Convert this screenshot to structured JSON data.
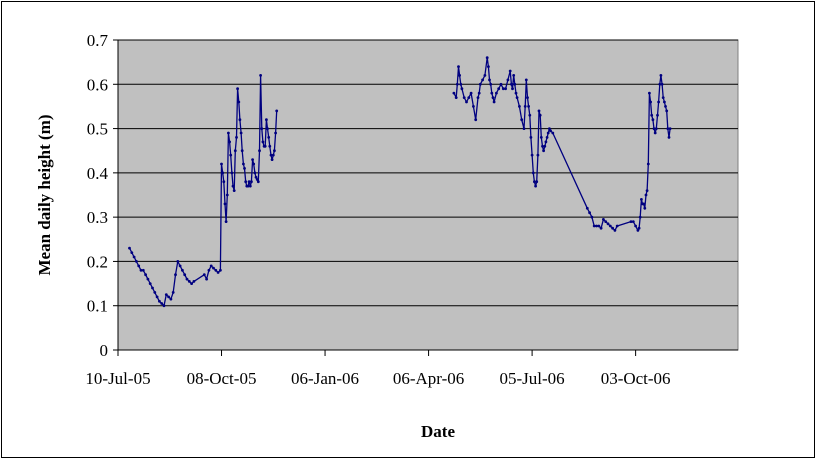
{
  "chart_data": {
    "type": "line",
    "title": "",
    "xlabel": "Date",
    "ylabel": "Mean daily height (m)",
    "ylim": [
      0,
      0.7
    ],
    "y_ticks": [
      0,
      0.1,
      0.2,
      0.3,
      0.4,
      0.5,
      0.6,
      0.7
    ],
    "y_tick_labels": [
      "0",
      "0.1",
      "0.2",
      "0.3",
      "0.4",
      "0.5",
      "0.6",
      "0.7"
    ],
    "xlim": [
      "2005-07-10",
      "2006-12-31"
    ],
    "x_ticks": [
      "2005-07-10",
      "2005-10-08",
      "2006-01-06",
      "2006-04-06",
      "2006-07-05",
      "2006-10-03"
    ],
    "x_tick_labels": [
      "10-Jul-05",
      "08-Oct-05",
      "06-Jan-06",
      "06-Apr-06",
      "05-Jul-06",
      "03-Oct-06"
    ],
    "grid": true,
    "legend": "none",
    "colors": {
      "plot_bg": "#c0c0c0",
      "line": "#000080",
      "grid": "#000000"
    },
    "series": [
      {
        "x": [
          "2005-07-20",
          "2005-07-22",
          "2005-07-24",
          "2005-07-26",
          "2005-07-28",
          "2005-07-30",
          "2005-08-01",
          "2005-08-03",
          "2005-08-05",
          "2005-08-07",
          "2005-08-09",
          "2005-08-11",
          "2005-08-13",
          "2005-08-15",
          "2005-08-17",
          "2005-08-19",
          "2005-08-21",
          "2005-08-23",
          "2005-08-25",
          "2005-08-27",
          "2005-08-29",
          "2005-08-31",
          "2005-09-02",
          "2005-09-04",
          "2005-09-06",
          "2005-09-08",
          "2005-09-10",
          "2005-09-12",
          "2005-09-14",
          "2005-09-23",
          "2005-09-25",
          "2005-09-27",
          "2005-09-29",
          "2005-10-01",
          "2005-10-03",
          "2005-10-05",
          "2005-10-07",
          "2005-10-08",
          "2005-10-09",
          "2005-10-10",
          "2005-10-11",
          "2005-10-12",
          "2005-10-13",
          "2005-10-14",
          "2005-10-15",
          "2005-10-16",
          "2005-10-17",
          "2005-10-18",
          "2005-10-19",
          "2005-10-20",
          "2005-10-21",
          "2005-10-22",
          "2005-10-23",
          "2005-10-24",
          "2005-10-25",
          "2005-10-26",
          "2005-10-27",
          "2005-10-28",
          "2005-10-29",
          "2005-10-30",
          "2005-10-31",
          "2005-11-01",
          "2005-11-02",
          "2005-11-03",
          "2005-11-04",
          "2005-11-05",
          "2005-11-06",
          "2005-11-07",
          "2005-11-08",
          "2005-11-09",
          "2005-11-10",
          "2005-11-11",
          "2005-11-12",
          "2005-11-13",
          "2005-11-14",
          "2005-11-15",
          "2005-11-16",
          "2005-11-17",
          "2005-11-18",
          "2005-11-19",
          "2005-11-20",
          "2005-11-21",
          "2005-11-22",
          "2005-11-23",
          "2005-11-24",
          "2005-11-25"
        ],
        "values": [
          0.23,
          0.22,
          0.21,
          0.2,
          0.19,
          0.18,
          0.18,
          0.17,
          0.16,
          0.15,
          0.14,
          0.13,
          0.12,
          0.11,
          0.105,
          0.1,
          0.125,
          0.12,
          0.115,
          0.13,
          0.17,
          0.2,
          0.19,
          0.18,
          0.17,
          0.16,
          0.155,
          0.15,
          0.155,
          0.17,
          0.16,
          0.18,
          0.19,
          0.185,
          0.18,
          0.175,
          0.18,
          0.42,
          0.4,
          0.38,
          0.33,
          0.29,
          0.35,
          0.49,
          0.47,
          0.44,
          0.4,
          0.37,
          0.36,
          0.45,
          0.48,
          0.59,
          0.56,
          0.52,
          0.49,
          0.45,
          0.42,
          0.41,
          0.38,
          0.37,
          0.37,
          0.38,
          0.37,
          0.38,
          0.43,
          0.42,
          0.4,
          0.39,
          0.385,
          0.38,
          0.45,
          0.62,
          0.5,
          0.47,
          0.46,
          0.46,
          0.52,
          0.5,
          0.48,
          0.46,
          0.44,
          0.43,
          0.44,
          0.45,
          0.49,
          0.54
        ]
      },
      {
        "x": [
          "2006-04-28",
          "2006-04-30",
          "2006-05-01",
          "2006-05-02",
          "2006-05-03",
          "2006-05-04",
          "2006-05-05",
          "2006-05-07",
          "2006-05-09",
          "2006-05-11",
          "2006-05-13",
          "2006-05-15",
          "2006-05-17",
          "2006-05-19",
          "2006-05-20",
          "2006-05-21",
          "2006-05-23",
          "2006-05-25",
          "2006-05-27",
          "2006-05-28",
          "2006-05-29",
          "2006-05-30",
          "2006-05-31",
          "2006-06-01",
          "2006-06-02",
          "2006-06-04",
          "2006-06-06",
          "2006-06-08",
          "2006-06-10",
          "2006-06-12",
          "2006-06-14",
          "2006-06-16",
          "2006-06-17",
          "2006-06-18",
          "2006-06-19",
          "2006-06-20",
          "2006-06-21",
          "2006-06-22",
          "2006-06-24",
          "2006-06-26",
          "2006-06-28",
          "2006-06-29",
          "2006-06-30",
          "2006-07-01",
          "2006-07-02",
          "2006-07-03",
          "2006-07-04",
          "2006-07-05",
          "2006-07-06",
          "2006-07-07",
          "2006-07-08",
          "2006-07-09",
          "2006-07-10",
          "2006-07-11",
          "2006-07-12",
          "2006-07-13",
          "2006-07-14",
          "2006-07-15",
          "2006-07-16",
          "2006-07-17",
          "2006-07-18",
          "2006-07-19",
          "2006-07-20",
          "2006-07-21",
          "2006-07-23",
          "2006-08-22",
          "2006-08-24",
          "2006-08-26",
          "2006-08-28",
          "2006-08-30",
          "2006-09-01",
          "2006-09-03",
          "2006-09-05",
          "2006-09-07",
          "2006-09-09",
          "2006-09-11",
          "2006-09-13",
          "2006-09-15",
          "2006-09-17",
          "2006-09-29",
          "2006-10-01",
          "2006-10-03",
          "2006-10-05",
          "2006-10-06",
          "2006-10-07",
          "2006-10-08",
          "2006-10-09",
          "2006-10-10",
          "2006-10-11",
          "2006-10-12",
          "2006-10-13",
          "2006-10-14",
          "2006-10-15",
          "2006-10-16",
          "2006-10-17",
          "2006-10-18",
          "2006-10-19",
          "2006-10-20",
          "2006-10-21",
          "2006-10-22",
          "2006-10-23",
          "2006-10-24",
          "2006-10-25",
          "2006-10-26",
          "2006-10-27",
          "2006-10-28",
          "2006-10-29",
          "2006-10-30",
          "2006-10-31",
          "2006-11-01",
          "2006-11-02"
        ],
        "values": [
          0.58,
          0.57,
          0.6,
          0.64,
          0.62,
          0.6,
          0.59,
          0.57,
          0.56,
          0.57,
          0.58,
          0.55,
          0.52,
          0.57,
          0.58,
          0.6,
          0.61,
          0.62,
          0.66,
          0.64,
          0.61,
          0.6,
          0.58,
          0.57,
          0.56,
          0.58,
          0.59,
          0.6,
          0.59,
          0.59,
          0.61,
          0.63,
          0.6,
          0.59,
          0.62,
          0.6,
          0.58,
          0.57,
          0.55,
          0.52,
          0.5,
          0.55,
          0.61,
          0.57,
          0.55,
          0.53,
          0.48,
          0.44,
          0.4,
          0.38,
          0.37,
          0.38,
          0.44,
          0.54,
          0.53,
          0.48,
          0.46,
          0.45,
          0.46,
          0.47,
          0.48,
          0.49,
          0.5,
          0.495,
          0.49,
          0.32,
          0.31,
          0.3,
          0.28,
          0.28,
          0.28,
          0.275,
          0.295,
          0.29,
          0.285,
          0.28,
          0.275,
          0.27,
          0.28,
          0.29,
          0.29,
          0.28,
          0.27,
          0.275,
          0.3,
          0.34,
          0.33,
          0.33,
          0.32,
          0.35,
          0.36,
          0.42,
          0.58,
          0.56,
          0.53,
          0.52,
          0.5,
          0.49,
          0.5,
          0.53,
          0.56,
          0.6,
          0.62,
          0.6,
          0.57,
          0.56,
          0.55,
          0.54,
          0.5,
          0.48,
          0.5
        ]
      }
    ]
  }
}
